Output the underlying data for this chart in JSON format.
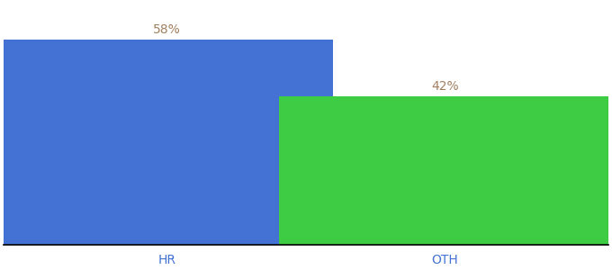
{
  "categories": [
    "HR",
    "OTH"
  ],
  "values": [
    58,
    42
  ],
  "bar_colors": [
    "#4472d4",
    "#3dcc44"
  ],
  "label_color": "#a08060",
  "axis_label_color": "#4472d4",
  "background_color": "#ffffff",
  "ylim": [
    0,
    68
  ],
  "bar_width": 0.55,
  "label_fontsize": 10,
  "tick_fontsize": 10,
  "value_format": "{}%",
  "bar_positions": [
    0.27,
    0.73
  ],
  "xlim": [
    0.0,
    1.0
  ]
}
